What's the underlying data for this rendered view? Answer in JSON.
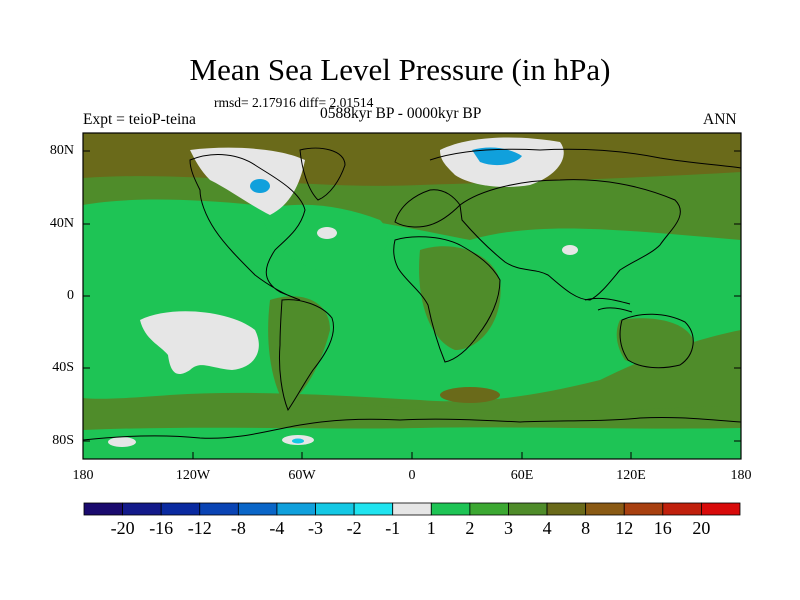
{
  "title": "Mean Sea Level Pressure (in hPa)",
  "stats": "rmsd= 2.17916  diff= 2.01514",
  "period": "0588kyr BP - 0000kyr BP",
  "expt": "Expt = teioP-teina",
  "season": "ANN",
  "lat_labels": [
    "80N",
    "40N",
    "0",
    "40S",
    "80S"
  ],
  "lon_labels": [
    "180",
    "120W",
    "60W",
    "0",
    "60E",
    "120E",
    "180"
  ],
  "colorbar": {
    "labels": [
      "-20",
      "-16",
      "-12",
      "-8",
      "-4",
      "-3",
      "-2",
      "-1",
      "1",
      "2",
      "3",
      "4",
      "8",
      "12",
      "16",
      "20"
    ],
    "colors": [
      "#1a0a6e",
      "#131a8a",
      "#0a2aa0",
      "#0a44b4",
      "#0a66c8",
      "#10a0dc",
      "#14c8e4",
      "#20e4f0",
      "#e6e6e6",
      "#1ec455",
      "#3ca832",
      "#4f8c2a",
      "#6a6a1a",
      "#8a5a14",
      "#a84010",
      "#c0200c",
      "#d80a0a"
    ]
  },
  "map_colors": {
    "ocean_mid": "#1ec455",
    "low_pos": "#3ca832",
    "mid_pos": "#4f8c2a",
    "high_pos": "#6a6a1a",
    "near_zero": "#e6e6e6",
    "neg": "#10a0dc"
  }
}
